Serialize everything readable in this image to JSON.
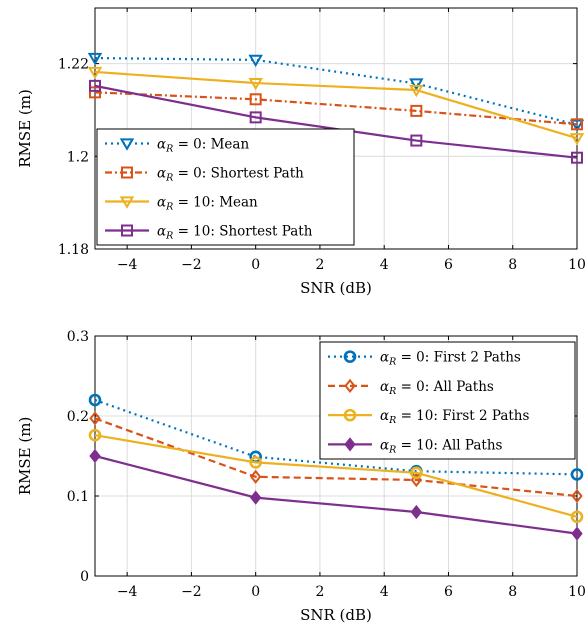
{
  "chart_data": [
    {
      "type": "line",
      "xlabel": "SNR (dB)",
      "ylabel": "RMSE (m)",
      "xlim": [
        -5,
        10
      ],
      "ylim": [
        1.18,
        1.232
      ],
      "xticks": [
        -4,
        -2,
        0,
        2,
        4,
        6,
        8,
        10
      ],
      "xtick_labels": [
        "−4",
        "−2",
        "0",
        "2",
        "4",
        "6",
        "8",
        "10"
      ],
      "yticks": [
        1.18,
        1.2,
        1.22
      ],
      "ytick_labels": [
        "1.18",
        "1.2",
        "1.22"
      ],
      "grid": true,
      "legend_position": "bottom-left",
      "x": [
        -5,
        0,
        5,
        10
      ],
      "series": [
        {
          "name": "αR = 0: Mean",
          "legend_prefix": "α",
          "legend_sub": "R",
          "legend_rest": " = 0: Mean",
          "values": [
            1.2212,
            1.2208,
            1.2157,
            1.2068
          ],
          "color": "#0072BD",
          "dash": "dotted",
          "marker": "triangle-down"
        },
        {
          "name": "αR = 0: Shortest Path",
          "legend_prefix": "α",
          "legend_sub": "R",
          "legend_rest": " = 0: Shortest Path",
          "values": [
            1.2138,
            1.2123,
            1.2098,
            1.2069
          ],
          "color": "#D95319",
          "dash": "dashdot",
          "marker": "square"
        },
        {
          "name": "αR = 10: Mean",
          "legend_prefix": "α",
          "legend_sub": "R",
          "legend_rest": " = 10: Mean",
          "values": [
            1.2182,
            1.2158,
            1.2143,
            1.2039
          ],
          "color": "#EDB120",
          "dash": "solid",
          "marker": "triangle-down"
        },
        {
          "name": "αR = 10: Shortest Path",
          "legend_prefix": "α",
          "legend_sub": "R",
          "legend_rest": " = 10: Shortest Path",
          "values": [
            1.2152,
            1.2084,
            1.2034,
            1.1997
          ],
          "color": "#7E2F8E",
          "dash": "solid",
          "marker": "square"
        }
      ]
    },
    {
      "type": "line",
      "xlabel": "SNR (dB)",
      "ylabel": "RMSE (m)",
      "xlim": [
        -5,
        10
      ],
      "ylim": [
        0,
        0.3
      ],
      "xticks": [
        -4,
        -2,
        0,
        2,
        4,
        6,
        8,
        10
      ],
      "xtick_labels": [
        "−4",
        "−2",
        "0",
        "2",
        "4",
        "6",
        "8",
        "10"
      ],
      "yticks": [
        0,
        0.1,
        0.2,
        0.3
      ],
      "ytick_labels": [
        "0",
        "0.1",
        "0.2",
        "0.3"
      ],
      "grid": true,
      "legend_position": "top-right",
      "x": [
        -5,
        0,
        5,
        10
      ],
      "series": [
        {
          "name": "αR = 0: First 2 Paths",
          "legend_prefix": "α",
          "legend_sub": "R",
          "legend_rest": " = 0: First 2 Paths",
          "values": [
            0.22,
            0.149,
            0.131,
            0.127
          ],
          "color": "#0072BD",
          "dash": "dotted",
          "marker": "circle"
        },
        {
          "name": "αR = 0: All Paths",
          "legend_prefix": "α",
          "legend_sub": "R",
          "legend_rest": " = 0: All Paths",
          "values": [
            0.197,
            0.124,
            0.12,
            0.1
          ],
          "color": "#D95319",
          "dash": "dashed",
          "marker": "diamond-open"
        },
        {
          "name": "αR = 10: First 2 Paths",
          "legend_prefix": "α",
          "legend_sub": "R",
          "legend_rest": " = 10: First 2 Paths",
          "values": [
            0.176,
            0.142,
            0.129,
            0.074
          ],
          "color": "#EDB120",
          "dash": "solid",
          "marker": "circle"
        },
        {
          "name": "αR = 10: All Paths",
          "legend_prefix": "α",
          "legend_sub": "R",
          "legend_rest": " = 10: All Paths",
          "values": [
            0.15,
            0.098,
            0.08,
            0.053
          ],
          "color": "#7E2F8E",
          "dash": "solid",
          "marker": "diamond-filled"
        }
      ]
    }
  ]
}
